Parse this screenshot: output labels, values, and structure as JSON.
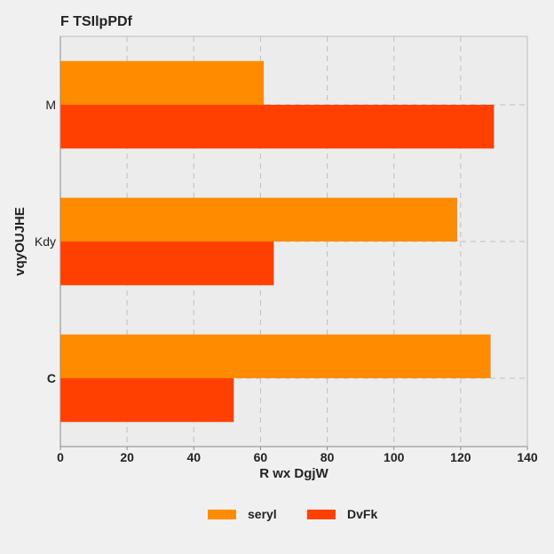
{
  "chart_data": {
    "type": "bar",
    "orientation": "horizontal",
    "title": "F  TSIlpPDf",
    "xlabel": "R  wx DgjW",
    "ylabel": "vqyOUJHE",
    "categories": [
      "C",
      "Kdy",
      "M"
    ],
    "category_labels_bold": [
      true,
      false,
      false
    ],
    "xlim": [
      0,
      140
    ],
    "xticks": [
      0,
      20,
      40,
      60,
      80,
      100,
      120,
      140
    ],
    "grid": true,
    "legend_position": "bottom-center",
    "series": [
      {
        "name": "seryl",
        "color": "#ff8c00",
        "values": [
          129,
          119,
          61
        ]
      },
      {
        "name": "DvFk",
        "color": "#ff4000",
        "values": [
          52,
          64,
          130
        ]
      }
    ],
    "colors": {
      "background": "#f0f0f0",
      "plot_background": "#ececec",
      "grid": "#c0c0c0",
      "frame": "#bdbdbd"
    }
  }
}
